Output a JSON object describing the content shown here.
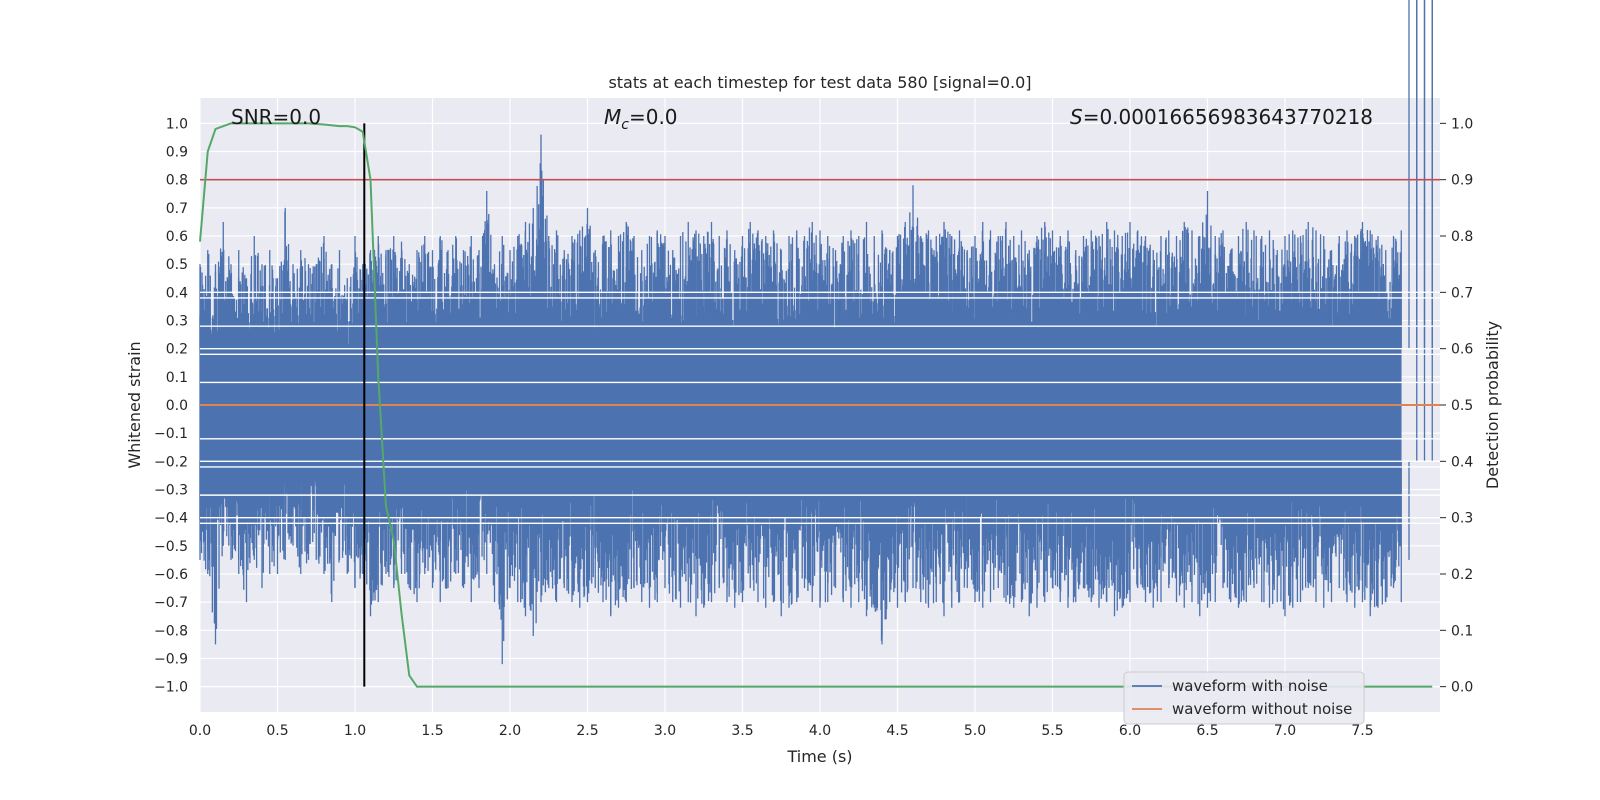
{
  "chart_data": {
    "type": "line",
    "title": "stats at each timestep for test data 580 [signal=0.0]",
    "xlabel": "Time (s)",
    "ylabel": "Whitened strain",
    "y2label": "Detection probability",
    "xlim": [
      0.0,
      8.0
    ],
    "ylim": [
      -1.09,
      1.09
    ],
    "y2lim": [
      -0.045,
      1.045
    ],
    "xticks": [
      "0.0",
      "0.5",
      "1.0",
      "1.5",
      "2.0",
      "2.5",
      "3.0",
      "3.5",
      "4.0",
      "4.5",
      "5.0",
      "5.5",
      "6.0",
      "6.5",
      "7.0",
      "7.5"
    ],
    "yticks": [
      "1.0",
      "0.9",
      "0.8",
      "0.7",
      "0.6",
      "0.5",
      "0.4",
      "0.3",
      "0.2",
      "0.1",
      "0.0",
      "−0.1",
      "−0.2",
      "−0.3",
      "−0.4",
      "−0.5",
      "−0.6",
      "−0.7",
      "−0.8",
      "−0.9",
      "−1.0"
    ],
    "y2ticks": [
      "1.0",
      "0.9",
      "0.8",
      "0.7",
      "0.6",
      "0.5",
      "0.4",
      "0.3",
      "0.2",
      "0.1",
      "0.0"
    ],
    "grid": true,
    "legend_position": "lower-right",
    "annotations": {
      "snr": "SNR=0.0",
      "mc_symbol": "M",
      "mc_subscript": "c",
      "mc_value": "=0.0",
      "s_symbol": "S",
      "s_value": "=0.00016656983643770218"
    },
    "series": [
      {
        "name": "waveform with noise",
        "axis": "left",
        "color": "#4c72b0",
        "envelope_x": [
          0.0,
          0.05,
          0.1,
          0.15,
          0.2,
          0.25,
          0.3,
          0.35,
          0.4,
          0.45,
          0.5,
          0.55,
          0.6,
          0.65,
          0.7,
          0.75,
          0.8,
          0.85,
          0.9,
          0.95,
          1.0,
          1.05,
          1.1,
          1.15,
          1.2,
          1.25,
          1.3,
          1.35,
          1.4,
          1.45,
          1.5,
          1.55,
          1.6,
          1.65,
          1.7,
          1.75,
          1.8,
          1.85,
          1.9,
          1.95,
          2.0,
          2.05,
          2.1,
          2.15,
          2.2,
          2.25,
          2.3,
          2.35,
          2.4,
          2.45,
          2.5,
          2.55,
          2.6,
          2.65,
          2.7,
          2.75,
          2.8,
          2.85,
          2.9,
          2.95,
          3.0,
          3.05,
          3.1,
          3.15,
          3.2,
          3.25,
          3.3,
          3.35,
          3.4,
          3.45,
          3.5,
          3.55,
          3.6,
          3.65,
          3.7,
          3.75,
          3.8,
          3.85,
          3.9,
          3.95,
          4.0,
          4.05,
          4.1,
          4.15,
          4.2,
          4.25,
          4.3,
          4.35,
          4.4,
          4.45,
          4.5,
          4.55,
          4.6,
          4.65,
          4.7,
          4.75,
          4.8,
          4.85,
          4.9,
          4.95,
          5.0,
          5.05,
          5.1,
          5.15,
          5.2,
          5.25,
          5.3,
          5.35,
          5.4,
          5.45,
          5.5,
          5.55,
          5.6,
          5.65,
          5.7,
          5.75,
          5.8,
          5.85,
          5.9,
          5.95,
          6.0,
          6.05,
          6.1,
          6.15,
          6.2,
          6.25,
          6.3,
          6.35,
          6.4,
          6.45,
          6.5,
          6.55,
          6.6,
          6.65,
          6.7,
          6.75,
          6.8,
          6.85,
          6.9,
          6.95,
          7.0,
          7.05,
          7.1,
          7.15,
          7.2,
          7.25,
          7.3,
          7.35,
          7.4,
          7.45,
          7.5,
          7.55,
          7.6,
          7.65,
          7.7,
          7.75,
          7.8,
          7.85,
          7.9,
          7.95,
          8.0
        ],
        "envelope_max": [
          0.5,
          0.55,
          0.5,
          0.65,
          0.5,
          0.55,
          0.45,
          0.6,
          0.5,
          0.55,
          0.45,
          0.7,
          0.5,
          0.55,
          0.5,
          0.5,
          0.6,
          0.5,
          0.55,
          0.45,
          0.6,
          0.5,
          0.55,
          0.6,
          0.55,
          0.6,
          0.58,
          0.5,
          0.55,
          0.6,
          0.55,
          0.6,
          0.55,
          0.6,
          0.55,
          0.6,
          0.55,
          0.76,
          0.5,
          0.6,
          0.55,
          0.6,
          0.65,
          0.7,
          0.96,
          0.6,
          0.62,
          0.55,
          0.6,
          0.62,
          0.7,
          0.55,
          0.6,
          0.62,
          0.6,
          0.65,
          0.6,
          0.55,
          0.6,
          0.62,
          0.6,
          0.55,
          0.6,
          0.65,
          0.62,
          0.6,
          0.65,
          0.6,
          0.62,
          0.55,
          0.6,
          0.65,
          0.62,
          0.6,
          0.62,
          0.55,
          0.6,
          0.62,
          0.6,
          0.65,
          0.62,
          0.6,
          0.55,
          0.6,
          0.62,
          0.6,
          0.65,
          0.6,
          0.62,
          0.55,
          0.6,
          0.65,
          0.78,
          0.6,
          0.62,
          0.6,
          0.65,
          0.6,
          0.62,
          0.55,
          0.6,
          0.65,
          0.62,
          0.6,
          0.65,
          0.6,
          0.62,
          0.55,
          0.6,
          0.65,
          0.62,
          0.6,
          0.62,
          0.55,
          0.6,
          0.62,
          0.6,
          0.65,
          0.62,
          0.6,
          0.65,
          0.62,
          0.6,
          0.55,
          0.6,
          0.62,
          0.6,
          0.65,
          0.62,
          0.6,
          0.76,
          0.6,
          0.62,
          0.55,
          0.6,
          0.65,
          0.62,
          0.6,
          0.62,
          0.55,
          0.6,
          0.62,
          0.6,
          0.65,
          0.62,
          0.6,
          0.55,
          0.6,
          0.62,
          0.6,
          0.65,
          0.62,
          0.6,
          0.55,
          0.6,
          0.62
        ],
        "envelope_min": [
          -0.55,
          -0.6,
          -0.85,
          -0.5,
          -0.55,
          -0.6,
          -0.7,
          -0.55,
          -0.65,
          -0.6,
          -0.6,
          -0.55,
          -0.5,
          -0.6,
          -0.55,
          -0.55,
          -0.6,
          -0.7,
          -0.55,
          -0.6,
          -0.65,
          -0.6,
          -0.75,
          -0.7,
          -0.6,
          -0.65,
          -0.6,
          -0.65,
          -0.7,
          -0.6,
          -0.65,
          -0.7,
          -0.65,
          -0.6,
          -0.65,
          -0.7,
          -0.65,
          -0.6,
          -0.7,
          -0.92,
          -0.65,
          -0.7,
          -0.75,
          -0.82,
          -0.7,
          -0.65,
          -0.7,
          -0.65,
          -0.7,
          -0.72,
          -0.7,
          -0.65,
          -0.7,
          -0.75,
          -0.72,
          -0.7,
          -0.65,
          -0.7,
          -0.72,
          -0.7,
          -0.65,
          -0.7,
          -0.72,
          -0.7,
          -0.75,
          -0.72,
          -0.7,
          -0.65,
          -0.7,
          -0.72,
          -0.7,
          -0.65,
          -0.7,
          -0.72,
          -0.7,
          -0.75,
          -0.72,
          -0.7,
          -0.65,
          -0.7,
          -0.72,
          -0.7,
          -0.65,
          -0.7,
          -0.72,
          -0.7,
          -0.75,
          -0.72,
          -0.85,
          -0.7,
          -0.72,
          -0.7,
          -0.65,
          -0.7,
          -0.72,
          -0.7,
          -0.75,
          -0.72,
          -0.7,
          -0.65,
          -0.7,
          -0.72,
          -0.7,
          -0.65,
          -0.7,
          -0.72,
          -0.7,
          -0.75,
          -0.72,
          -0.7,
          -0.65,
          -0.7,
          -0.72,
          -0.7,
          -0.65,
          -0.7,
          -0.72,
          -0.7,
          -0.75,
          -0.72,
          -0.7,
          -0.65,
          -0.7,
          -0.72,
          -0.7,
          -0.65,
          -0.7,
          -0.72,
          -0.7,
          -0.75,
          -0.72,
          -0.7,
          -0.65,
          -0.7,
          -0.72,
          -0.7,
          -0.65,
          -0.7,
          -0.72,
          -0.7,
          -0.75,
          -0.72,
          -0.7,
          -0.65,
          -0.7,
          -0.72,
          -0.7,
          -0.65,
          -0.7,
          -0.72,
          -0.7,
          -0.75,
          -0.72,
          -0.7,
          -0.65,
          -0.7,
          -0.55
        ]
      },
      {
        "name": "waveform without noise",
        "axis": "left",
        "color": "#dd8452",
        "x": [
          0.0,
          8.0
        ],
        "values": [
          0.0,
          0.0
        ]
      },
      {
        "name": "",
        "axis": "right",
        "color": "#55a868",
        "x": [
          0.0,
          0.05,
          0.1,
          0.2,
          0.3,
          0.4,
          0.5,
          0.6,
          0.7,
          0.8,
          0.9,
          0.95,
          1.0,
          1.05,
          1.1,
          1.15,
          1.2,
          1.25,
          1.3,
          1.35,
          1.4,
          1.45,
          1.5,
          2.0,
          3.0,
          4.0,
          5.0,
          6.0,
          7.0,
          7.95
        ],
        "values": [
          0.79,
          0.95,
          0.99,
          1.0,
          1.0,
          1.0,
          1.0,
          1.0,
          1.0,
          0.998,
          0.995,
          0.995,
          0.993,
          0.985,
          0.9,
          0.55,
          0.32,
          0.26,
          0.13,
          0.02,
          0.0,
          0.0,
          0.0,
          0.0,
          0.0,
          0.0,
          0.0,
          0.0,
          0.0,
          0.0
        ]
      }
    ],
    "reference_lines": [
      {
        "type": "horizontal",
        "axis": "right",
        "value": 0.9,
        "color": "#c44e52"
      },
      {
        "type": "vertical",
        "axis": "x",
        "value": 1.06,
        "y2_from": 0.0,
        "y2_to": 1.0,
        "color": "#000000"
      }
    ]
  }
}
